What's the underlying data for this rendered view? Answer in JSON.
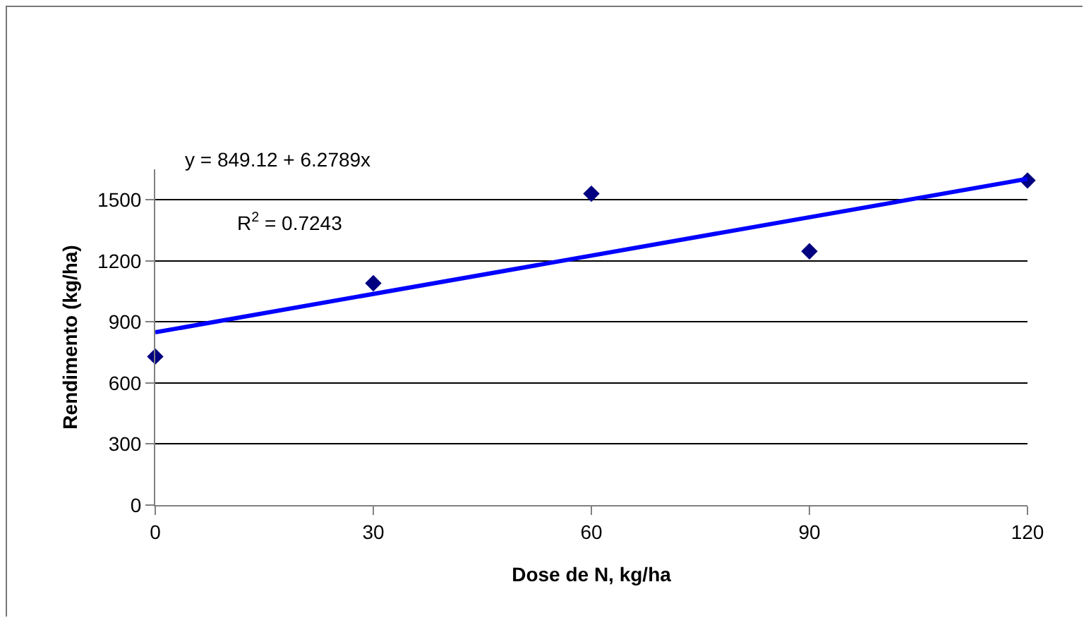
{
  "chart_data": {
    "type": "scatter",
    "xlabel": "Dose de N, kg/ha",
    "ylabel": "Rendimento (kg/ha)",
    "series": [
      {
        "color": "#000080",
        "x": [
          0,
          30,
          60,
          90,
          120
        ],
        "values": [
          730,
          1090,
          1530,
          1247,
          1595
        ]
      },
      {
        "type": "line",
        "marker": "none",
        "color": "#0000ff",
        "x": [
          0,
          120
        ],
        "values": [
          849,
          1603
        ]
      }
    ],
    "annotations": [
      "y = 849.12 + 6.2789x",
      "R$^{2}$ = 0.7243"
    ],
    "xlim": [
      0,
      120
    ],
    "xticks": [
      0,
      30,
      60,
      90,
      120
    ],
    "ylim": [
      0,
      1650
    ],
    "yticks": [
      0,
      300,
      600,
      900,
      1200,
      1500
    ],
    "grid": "y",
    "marker": "diamond",
    "line_style": "solid"
  }
}
